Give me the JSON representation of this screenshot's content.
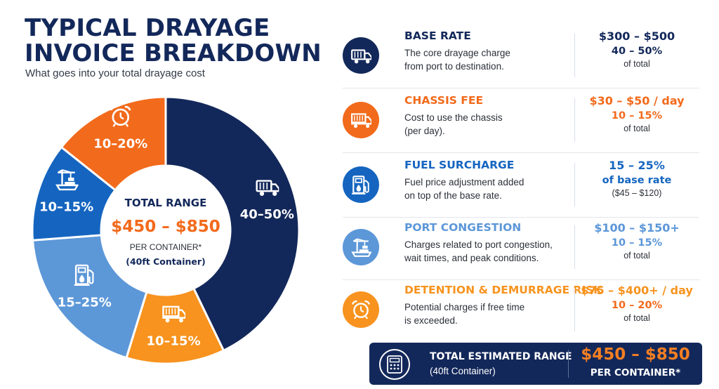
{
  "header": {
    "title_line1": "TYPICAL DRAYAGE",
    "title_line2": "INVOICE BREAKDOWN",
    "subtitle": "What goes into your total drayage cost"
  },
  "chart_data": {
    "type": "pie",
    "style": "donut",
    "start": "top",
    "direction": "clockwise",
    "slices": [
      {
        "label": "40–50%",
        "value": 45,
        "color": "#13285a",
        "icon": "truck-icon"
      },
      {
        "label": "10–15%",
        "value": 12.5,
        "color": "#f7931e",
        "icon": "container-truck-icon"
      },
      {
        "label": "15–25%",
        "value": 20,
        "color": "#5c97d8",
        "icon": "fuel-pump-icon"
      },
      {
        "label": "10–15%",
        "value": 12.5,
        "color": "#1565c0",
        "icon": "port-crane-icon"
      },
      {
        "label": "10–20%",
        "value": 15,
        "color": "#f26a1b",
        "icon": "alarm-clock-icon"
      }
    ],
    "center": {
      "title": "TOTAL RANGE",
      "range": "$450 – $850",
      "unit": "PER CONTAINER*",
      "note": "(40ft Container)"
    }
  },
  "breakdown": [
    {
      "name": "BASE RATE",
      "desc_line1": "The core drayage charge",
      "desc_line2": "from port to destination.",
      "v1": "$300 – $500",
      "v2": "40 – 50%",
      "v3": "of total",
      "accent": "#13285a",
      "v2color": "#13285a",
      "icon": "truck-icon"
    },
    {
      "name": "CHASSIS FEE",
      "desc_line1": "Cost to use the chassis",
      "desc_line2": "(per day).",
      "v1": "$30 – $50 / day",
      "v2": "10 – 15%",
      "v3": "of total",
      "accent": "#f26a1b",
      "v2color": "#f26a1b",
      "icon": "container-truck-icon"
    },
    {
      "name": "FUEL SURCHARGE",
      "desc_line1": "Fuel price adjustment added",
      "desc_line2": "on top of the base rate.",
      "v1": "15 – 25%",
      "v2": "of base rate",
      "v3": "($45 – $120)",
      "accent": "#1565c0",
      "v2color": "#1565c0",
      "icon": "fuel-pump-icon"
    },
    {
      "name": "PORT CONGESTION",
      "desc_line1": "Charges related to port congestion,",
      "desc_line2": "wait times, and peak conditions.",
      "v1": "$100 – $150+",
      "v2": "10 – 15%",
      "v3": "of total",
      "accent": "#5c97d8",
      "v2color": "#5c97d8",
      "icon": "port-crane-icon"
    },
    {
      "name": "DETENTION & DEMURRAGE RISK",
      "desc_line1": "Potential charges if free time",
      "desc_line2": "is exceeded.",
      "v1": "$75 – $400+ / day",
      "v2": "10 – 20%",
      "v3": "of total",
      "accent": "#f7931e",
      "v2color": "#f26a1b",
      "icon": "alarm-clock-icon"
    }
  ],
  "total": {
    "label": "TOTAL ESTIMATED RANGE",
    "sublabel": "(40ft Container)",
    "range": "$450 – $850",
    "unit": "PER CONTAINER*",
    "icon": "calculator-icon"
  }
}
